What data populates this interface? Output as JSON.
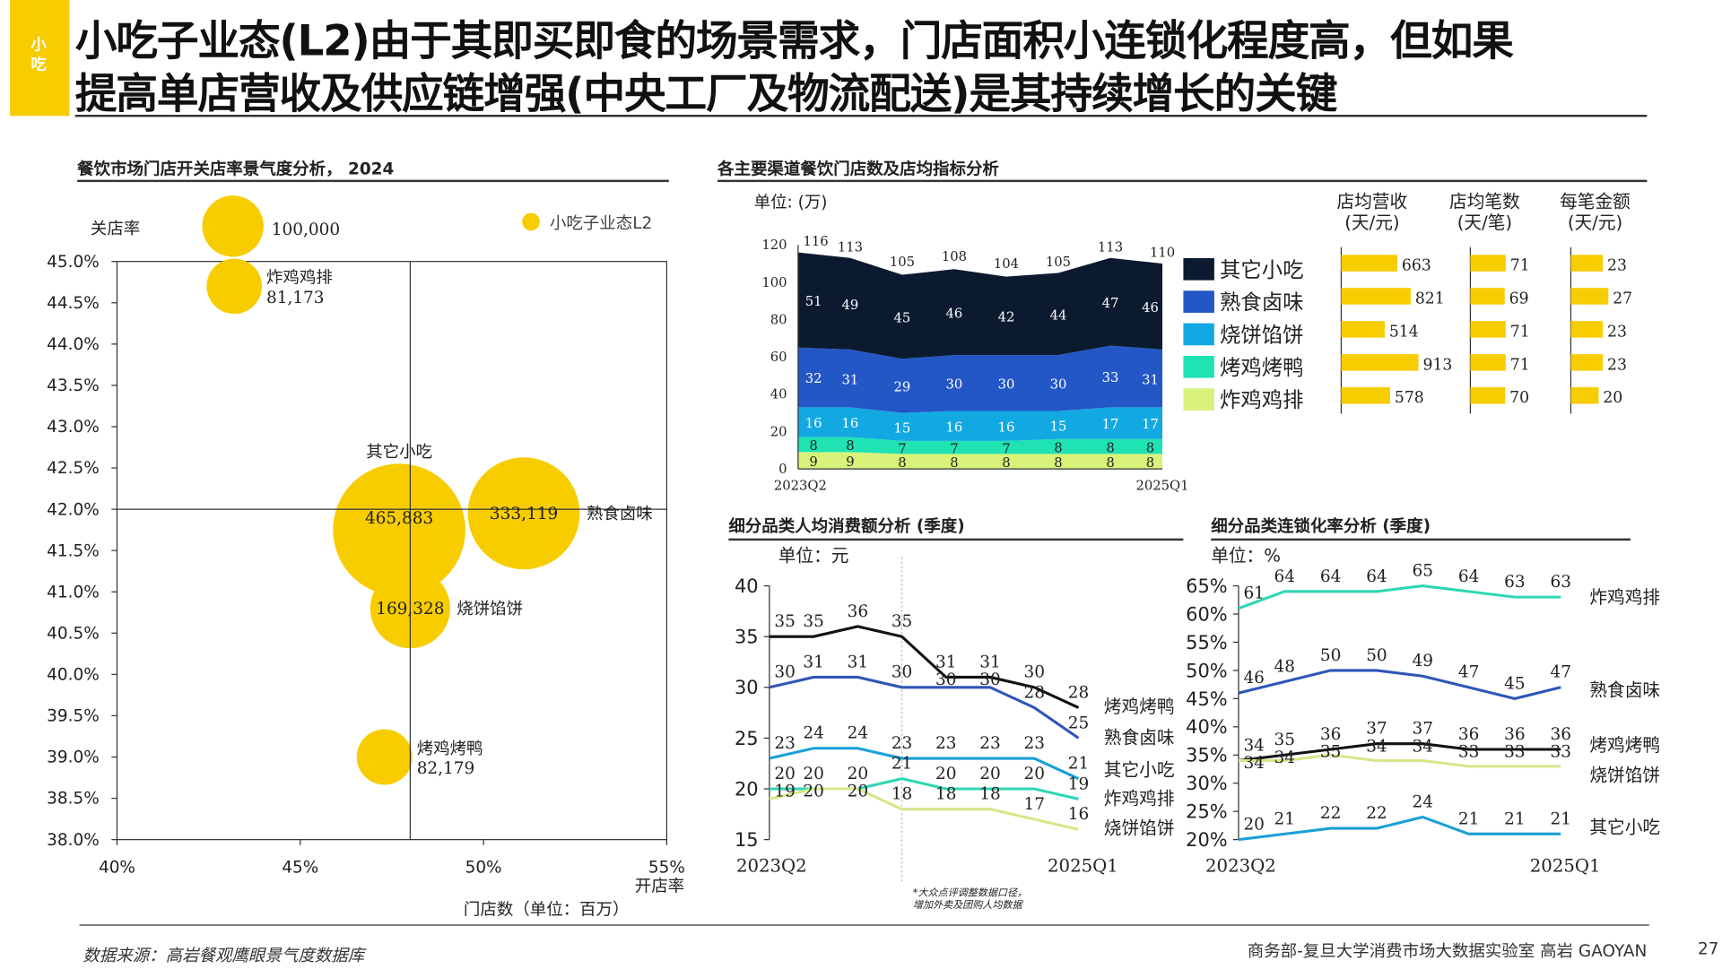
{
  "header": {
    "tag": "小吃",
    "title_line1": "小吃子业态(L2)由于其即买即食的场景需求，门店面积小连锁化程度高，但如果",
    "title_line2": "提高单店营收及供应链增强(中央工厂及物流配送)是其持续增长的关键"
  },
  "footer": {
    "source": "数据来源：高岩餐观鹰眼景气度数据库",
    "credit": "商务部-复旦大学消费市场大数据实验室   高岩 GAOYAN",
    "page": "27"
  },
  "colors": {
    "accent": "#f7cc00",
    "bubble": "#f7cd00"
  },
  "chart_data": [
    {
      "type": "scatter",
      "title": "餐饮市场门店开关店率景气度分析， 2024",
      "xlabel": "开店率",
      "ylabel": "关店率",
      "size_label": "门店数（单位：百万）",
      "legend": "小吃子业态L2",
      "legend_position": "top-right",
      "size_reference": {
        "value": 100000,
        "label": "100,000"
      },
      "xlim": [
        40,
        55
      ],
      "ylim": [
        38,
        45
      ],
      "x_ticks": [
        "40%",
        "45%",
        "50%",
        "55%"
      ],
      "y_ticks": [
        "38.0%",
        "38.5%",
        "39.0%",
        "39.5%",
        "40.0%",
        "40.5%",
        "41.0%",
        "41.5%",
        "42.0%",
        "42.5%",
        "43.0%",
        "43.5%",
        "44.0%",
        "44.5%",
        "45.0%"
      ],
      "crosshair": {
        "x": 48,
        "y": 42
      },
      "points": [
        {
          "name": "炸鸡鸡排",
          "x": 43.2,
          "y": 44.7,
          "size": 81173,
          "size_label": "81,173",
          "label_position": "right"
        },
        {
          "name": "其它小吃",
          "x": 47.7,
          "y": 41.75,
          "size": 465883,
          "size_label": "465,883",
          "label_position": "above"
        },
        {
          "name": "熟食卤味",
          "x": 51.1,
          "y": 41.95,
          "size": 333119,
          "size_label": "333,119",
          "label_position": "right"
        },
        {
          "name": "烧饼馅饼",
          "x": 48.0,
          "y": 40.8,
          "size": 169328,
          "size_label": "169,328",
          "label_position": "right"
        },
        {
          "name": "烤鸡烤鸭",
          "x": 47.3,
          "y": 39.0,
          "size": 82179,
          "size_label": "82,179",
          "label_position": "right-stacked"
        }
      ]
    },
    {
      "type": "area",
      "stacked": true,
      "title": "各主要渠道餐饮门店数及店均指标分析",
      "unit": "单位: (万)",
      "ylim": [
        0,
        120
      ],
      "y_ticks": [
        0,
        20,
        40,
        60,
        80,
        100,
        120
      ],
      "x_tick_labels": [
        "2023Q2",
        "2025Q1"
      ],
      "totals": [
        116,
        113,
        105,
        108,
        104,
        105,
        113,
        110
      ],
      "series": [
        {
          "name": "炸鸡鸡排",
          "color": "#d8f27a",
          "values": [
            9,
            9,
            8,
            8,
            8,
            8,
            8,
            8
          ]
        },
        {
          "name": "烤鸡烤鸭",
          "color": "#1fe3b3",
          "values": [
            8,
            8,
            7,
            7,
            7,
            8,
            8,
            8
          ]
        },
        {
          "name": "烧饼馅饼",
          "color": "#12a9e2",
          "values": [
            16,
            16,
            15,
            16,
            16,
            15,
            17,
            17
          ]
        },
        {
          "name": "熟食卤味",
          "color": "#2357c6",
          "values": [
            32,
            31,
            29,
            30,
            30,
            30,
            33,
            31
          ]
        },
        {
          "name": "其它小吃",
          "color": "#0c1a30",
          "values": [
            51,
            49,
            45,
            46,
            42,
            44,
            47,
            46
          ]
        }
      ],
      "legend_order": [
        "其它小吃",
        "熟食卤味",
        "烧饼馅饼",
        "烤鸡烤鸭",
        "炸鸡鸡排"
      ],
      "metrics": [
        {
          "header1": "店均营收",
          "header2": "(天/元)",
          "values": [
            663,
            821,
            514,
            913,
            578
          ]
        },
        {
          "header1": "店均笔数",
          "header2": "(天/笔)",
          "values": [
            71,
            69,
            71,
            71,
            70
          ]
        },
        {
          "header1": "每笔金额",
          "header2": "(天/元)",
          "values": [
            23,
            27,
            23,
            23,
            20
          ]
        }
      ]
    },
    {
      "type": "line",
      "title": "细分品类人均消费额分析 (季度)",
      "unit": "单位：元",
      "ylim": [
        15,
        40
      ],
      "y_ticks": [
        "15",
        "20",
        "25",
        "30",
        "35",
        "40"
      ],
      "x_tick_labels": [
        "2023Q2",
        "2025Q1"
      ],
      "note": "*大众点评调整数据口径，\n增加外卖及团购人均数据",
      "series": [
        {
          "name": "烤鸡烤鸭",
          "color": "#111111",
          "values": [
            35,
            35,
            36,
            35,
            31,
            31,
            30,
            28
          ]
        },
        {
          "name": "熟食卤味",
          "color": "#2e56b8",
          "values": [
            30,
            31,
            31,
            30,
            30,
            30,
            28,
            25
          ]
        },
        {
          "name": "其它小吃",
          "color": "#1aa0d8",
          "values": [
            23,
            24,
            24,
            23,
            23,
            23,
            23,
            21
          ]
        },
        {
          "name": "炸鸡鸡排",
          "color": "#2fd6b4",
          "values": [
            20,
            20,
            20,
            21,
            20,
            20,
            20,
            19
          ]
        },
        {
          "name": "烧饼馅饼",
          "color": "#d3e88a",
          "values": [
            19,
            20,
            20,
            18,
            18,
            18,
            17,
            16
          ]
        }
      ]
    },
    {
      "type": "line",
      "title": "细分品类连锁化率分析 (季度)",
      "unit": "单位：%",
      "ylim": [
        20,
        65
      ],
      "y_ticks": [
        "20%",
        "25%",
        "30%",
        "35%",
        "40%",
        "45%",
        "50%",
        "55%",
        "60%",
        "65%"
      ],
      "x_tick_labels": [
        "2023Q2",
        "2025Q1"
      ],
      "series": [
        {
          "name": "炸鸡鸡排",
          "color": "#2fd6b4",
          "values": [
            61,
            64,
            64,
            64,
            65,
            64,
            63,
            63
          ]
        },
        {
          "name": "熟食卤味",
          "color": "#2e56b8",
          "values": [
            46,
            48,
            50,
            50,
            49,
            47,
            45,
            47
          ]
        },
        {
          "name": "烤鸡烤鸭",
          "color": "#111111",
          "values": [
            34,
            35,
            36,
            37,
            37,
            36,
            36,
            36
          ]
        },
        {
          "name": "烧饼馅饼",
          "color": "#d3e88a",
          "values": [
            34,
            34,
            35,
            34,
            34,
            33,
            33,
            33
          ]
        },
        {
          "name": "其它小吃",
          "color": "#1aa0d8",
          "values": [
            20,
            21,
            22,
            22,
            24,
            21,
            21,
            21
          ]
        }
      ]
    }
  ]
}
